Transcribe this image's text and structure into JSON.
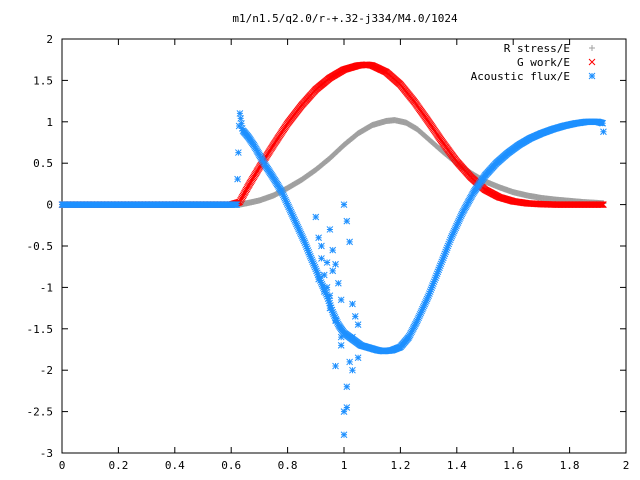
{
  "chart_data": {
    "type": "scatter",
    "title": "m1/n1.5/q2.0/r-+.32-j334/M4.0/1024",
    "xlabel": "",
    "ylabel": "",
    "xlim": [
      0,
      2
    ],
    "ylim": [
      -3,
      2
    ],
    "x_ticks": [
      "0",
      "0.2",
      "0.4",
      "0.6",
      "0.8",
      "1",
      "1.2",
      "1.4",
      "1.6",
      "1.8",
      "2"
    ],
    "y_ticks": [
      "2",
      "1.5",
      "1",
      "0.5",
      "0",
      "-0.5",
      "-1",
      "-1.5",
      "-2",
      "-2.5",
      "-3"
    ],
    "grid": false,
    "legend_position": "top-right",
    "series": [
      {
        "name": "R stress/E",
        "marker": "+",
        "color": "#a0a0a0",
        "x": [
          0.0,
          0.1,
          0.2,
          0.3,
          0.4,
          0.5,
          0.6,
          0.63,
          0.66,
          0.7,
          0.75,
          0.8,
          0.85,
          0.9,
          0.95,
          1.0,
          1.05,
          1.1,
          1.15,
          1.18,
          1.22,
          1.26,
          1.3,
          1.35,
          1.4,
          1.45,
          1.5,
          1.55,
          1.6,
          1.65,
          1.7,
          1.75,
          1.8,
          1.85,
          1.9,
          1.92
        ],
        "y": [
          0,
          0,
          0,
          0,
          0,
          0,
          0,
          0.0,
          0.02,
          0.05,
          0.11,
          0.2,
          0.3,
          0.42,
          0.56,
          0.72,
          0.86,
          0.96,
          1.01,
          1.02,
          0.99,
          0.91,
          0.79,
          0.64,
          0.5,
          0.38,
          0.28,
          0.21,
          0.15,
          0.11,
          0.08,
          0.06,
          0.045,
          0.03,
          0.02,
          0.015
        ]
      },
      {
        "name": "G work/E",
        "marker": "x",
        "color": "#ff0000",
        "x": [
          0.0,
          0.1,
          0.2,
          0.3,
          0.4,
          0.5,
          0.6,
          0.63,
          0.66,
          0.7,
          0.75,
          0.8,
          0.85,
          0.9,
          0.95,
          1.0,
          1.05,
          1.08,
          1.1,
          1.15,
          1.2,
          1.25,
          1.3,
          1.35,
          1.4,
          1.45,
          1.5,
          1.55,
          1.6,
          1.65,
          1.7,
          1.75,
          1.8,
          1.85,
          1.9,
          1.92
        ],
        "y": [
          0,
          0,
          0,
          0,
          0,
          0,
          0,
          0.03,
          0.22,
          0.45,
          0.72,
          0.98,
          1.2,
          1.39,
          1.53,
          1.63,
          1.68,
          1.69,
          1.68,
          1.6,
          1.45,
          1.24,
          1.0,
          0.75,
          0.52,
          0.33,
          0.18,
          0.09,
          0.04,
          0.015,
          0.005,
          0.0,
          0.0,
          0.0,
          0.0,
          0.0
        ]
      },
      {
        "name": "Acoustic flux/E",
        "marker": "*",
        "color": "#1e90ff",
        "x": [
          0.0,
          0.1,
          0.2,
          0.3,
          0.4,
          0.5,
          0.6,
          0.62,
          0.63,
          0.63,
          0.64,
          0.66,
          0.68,
          0.7,
          0.72,
          0.75,
          0.78,
          0.8,
          0.82,
          0.84,
          0.86,
          0.88,
          0.9,
          0.92,
          0.94,
          0.96,
          0.98,
          1.0,
          1.02,
          1.04,
          1.06,
          1.08,
          1.1,
          1.12,
          1.14,
          1.17,
          1.2,
          1.23,
          1.26,
          1.3,
          1.34,
          1.38,
          1.42,
          1.46,
          1.5,
          1.54,
          1.58,
          1.62,
          1.66,
          1.7,
          1.74,
          1.78,
          1.82,
          1.86,
          1.9,
          1.92,
          1.92,
          0.9,
          0.91,
          0.92,
          0.93,
          0.94,
          0.95,
          0.96,
          0.97,
          0.98,
          0.99,
          1.0,
          1.01,
          1.02,
          1.03,
          1.04,
          1.05,
          0.91,
          0.93,
          0.95,
          0.97,
          0.99,
          1.01,
          1.03,
          1.05,
          1.0,
          1.0,
          0.99,
          1.01,
          0.97,
          1.03,
          0.95,
          0.92,
          0.94,
          0.96,
          1.02
        ],
        "y": [
          0,
          0,
          0,
          0,
          0,
          0,
          0,
          0,
          1.17,
          1.12,
          0.9,
          0.82,
          0.72,
          0.6,
          0.48,
          0.32,
          0.15,
          0.0,
          -0.15,
          -0.3,
          -0.45,
          -0.62,
          -0.78,
          -0.95,
          -1.1,
          -1.3,
          -1.45,
          -1.55,
          -1.6,
          -1.65,
          -1.7,
          -1.72,
          -1.74,
          -1.76,
          -1.77,
          -1.76,
          -1.72,
          -1.6,
          -1.4,
          -1.1,
          -0.75,
          -0.4,
          -0.1,
          0.15,
          0.35,
          0.5,
          0.62,
          0.72,
          0.8,
          0.86,
          0.91,
          0.95,
          0.98,
          1.0,
          1.0,
          0.98,
          0.88,
          -0.15,
          -0.4,
          -0.65,
          -0.85,
          -1.0,
          -0.3,
          -0.55,
          -0.72,
          -0.95,
          -1.15,
          0.0,
          -0.2,
          -0.45,
          -1.2,
          -1.35,
          -1.45,
          -0.9,
          -1.05,
          -1.25,
          -1.4,
          -1.6,
          -2.2,
          -2.0,
          -1.85,
          -2.5,
          -2.78,
          -1.7,
          -2.45,
          -1.95,
          -1.6,
          -1.1,
          -0.5,
          -0.7,
          -0.8,
          -1.9
        ]
      }
    ]
  }
}
